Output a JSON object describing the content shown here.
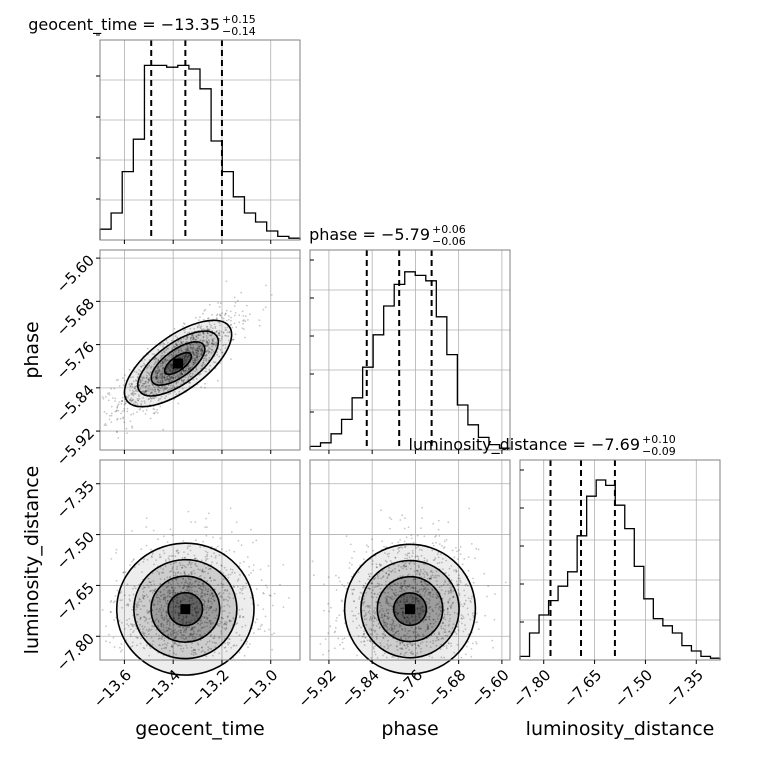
{
  "chart_data": {
    "type": "corner",
    "params": [
      {
        "name": "geocent_time",
        "summary": {
          "prefix": "geocent_time = ",
          "median": "−13.35",
          "plus": "+0.15",
          "minus": "−0.14"
        },
        "range": [
          -13.7,
          -12.88
        ],
        "ticks": [
          -13.6,
          -13.4,
          -13.2,
          -13.0
        ],
        "tick_labels": [
          "−13.6",
          "−13.4",
          "−13.2",
          "−13.0"
        ],
        "quantiles": [
          -13.49,
          -13.35,
          -13.2
        ],
        "hist": [
          0.06,
          0.15,
          0.38,
          0.56,
          0.97,
          0.97,
          0.96,
          0.97,
          0.95,
          0.84,
          0.55,
          0.38,
          0.24,
          0.15,
          0.1,
          0.05,
          0.02,
          0.01
        ]
      },
      {
        "name": "phase",
        "summary": {
          "prefix": "phase = ",
          "median": "−5.79",
          "plus": "+0.06",
          "minus": "−0.06"
        },
        "range": [
          -5.955,
          -5.585
        ],
        "ticks": [
          -5.92,
          -5.84,
          -5.76,
          -5.68,
          -5.6
        ],
        "tick_labels": [
          "−5.92",
          "−5.84",
          "−5.76",
          "−5.68",
          "−5.60"
        ],
        "quantiles": [
          -5.85,
          -5.79,
          -5.73
        ],
        "hist": [
          0.02,
          0.04,
          0.09,
          0.17,
          0.29,
          0.46,
          0.64,
          0.8,
          0.92,
          0.99,
          0.97,
          0.94,
          0.74,
          0.53,
          0.25,
          0.14,
          0.07,
          0.03,
          0.01
        ]
      },
      {
        "name": "luminosity_distance",
        "summary": {
          "prefix": "luminosity_distance = ",
          "median": "−7.69",
          "plus": "+0.10",
          "minus": "−0.09"
        },
        "range": [
          -7.87,
          -7.28
        ],
        "ticks": [
          -7.8,
          -7.65,
          -7.5,
          -7.35
        ],
        "tick_labels": [
          "−7.80",
          "−7.65",
          "−7.50",
          "−7.35"
        ],
        "quantiles": [
          -7.78,
          -7.69,
          -7.59
        ],
        "hist": [
          0.02,
          0.15,
          0.25,
          0.33,
          0.41,
          0.49,
          0.69,
          0.91,
          1.0,
          0.97,
          0.86,
          0.73,
          0.52,
          0.34,
          0.23,
          0.19,
          0.15,
          0.08,
          0.05,
          0.02,
          0.01
        ]
      }
    ],
    "pairs": [
      {
        "x": "geocent_time",
        "y": "phase",
        "peak": [
          -13.38,
          -5.795
        ],
        "sd": [
          0.12,
          0.045
        ],
        "rho": 0.8
      },
      {
        "x": "geocent_time",
        "y": "luminosity_distance",
        "peak": [
          -13.35,
          -7.72
        ],
        "sd": [
          0.14,
          0.1
        ],
        "rho": 0.05
      },
      {
        "x": "phase",
        "y": "luminosity_distance",
        "peak": [
          -5.77,
          -7.72
        ],
        "sd": [
          0.06,
          0.1
        ],
        "rho": 0.08
      }
    ],
    "grid": true,
    "colors": {
      "line": "#000000",
      "grid": "#b0b0b0",
      "scatter": "#000000",
      "frame": "#808080"
    }
  }
}
